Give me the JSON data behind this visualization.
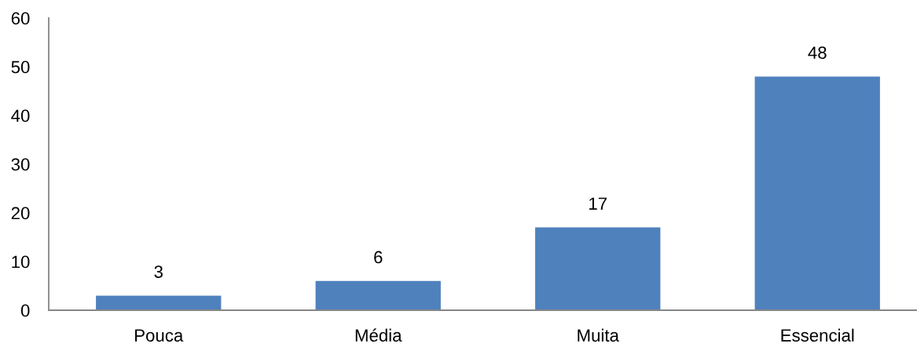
{
  "chart_data": {
    "type": "bar",
    "categories": [
      "Pouca",
      "Média",
      "Muita",
      "Essencial"
    ],
    "values": [
      3,
      6,
      17,
      48
    ],
    "color": "#4f81bd",
    "ylim": [
      0,
      60
    ],
    "yticks": [
      0,
      10,
      20,
      30,
      40,
      50,
      60
    ],
    "data_labels": true,
    "grid": false
  }
}
